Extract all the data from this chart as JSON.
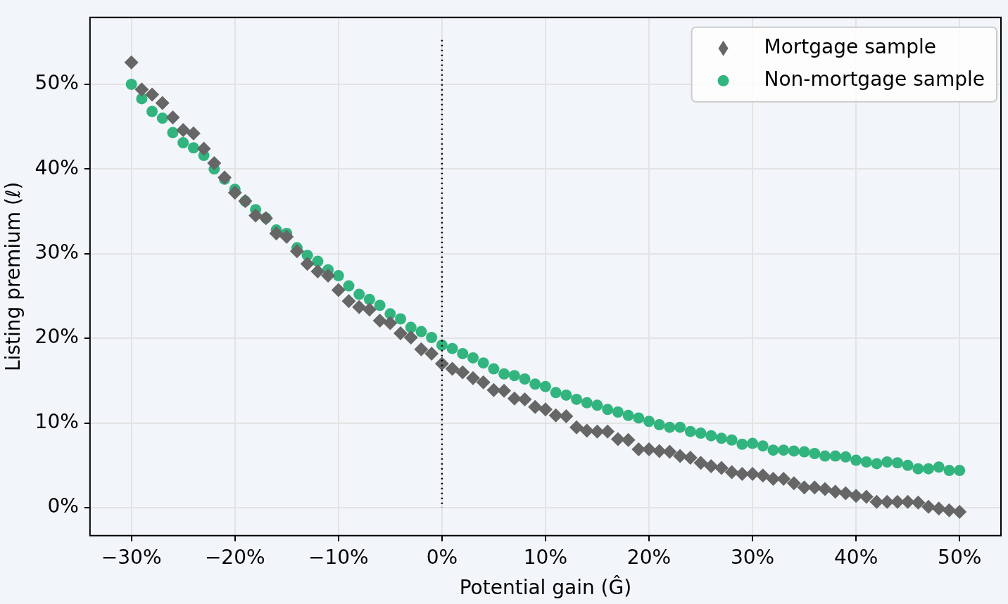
{
  "chart_data": {
    "type": "scatter",
    "xlabel": "Potential gain (Ĝ)",
    "ylabel": "Listing premium (ℓ)",
    "x": [
      -30,
      -29,
      -28,
      -27,
      -26,
      -25,
      -24,
      -23,
      -22,
      -21,
      -20,
      -19,
      -18,
      -17,
      -16,
      -15,
      -14,
      -13,
      -12,
      -11,
      -10,
      -9,
      -8,
      -7,
      -6,
      -5,
      -4,
      -3,
      -2,
      -1,
      0,
      1,
      2,
      3,
      4,
      5,
      6,
      7,
      8,
      9,
      10,
      11,
      12,
      13,
      14,
      15,
      16,
      17,
      18,
      19,
      20,
      21,
      22,
      23,
      24,
      25,
      26,
      27,
      28,
      29,
      30,
      31,
      32,
      33,
      34,
      35,
      36,
      37,
      38,
      39,
      40,
      41,
      42,
      43,
      44,
      45,
      46,
      47,
      48,
      49,
      50
    ],
    "series": [
      {
        "name": "Mortgage sample",
        "color": "#666666",
        "marker": "diamond",
        "values": [
          52.6,
          49.4,
          48.8,
          47.8,
          46.1,
          44.6,
          44.2,
          42.4,
          40.7,
          39.0,
          37.2,
          36.2,
          34.5,
          34.2,
          32.4,
          32.0,
          30.3,
          28.8,
          27.9,
          27.4,
          25.7,
          24.4,
          23.7,
          23.4,
          22.1,
          21.8,
          20.6,
          20.1,
          18.7,
          18.2,
          17.0,
          16.4,
          16.0,
          15.3,
          14.8,
          13.9,
          13.8,
          12.9,
          12.8,
          11.9,
          11.6,
          10.9,
          10.8,
          9.5,
          9.1,
          9.0,
          9.0,
          8.1,
          8.0,
          6.9,
          6.9,
          6.7,
          6.6,
          6.1,
          5.9,
          5.3,
          4.9,
          4.7,
          4.2,
          4.0,
          4.0,
          3.8,
          3.4,
          3.4,
          2.9,
          2.4,
          2.4,
          2.2,
          1.9,
          1.7,
          1.4,
          1.3,
          0.7,
          0.7,
          0.7,
          0.7,
          0.6,
          0.1,
          -0.1,
          -0.3,
          -0.5
        ]
      },
      {
        "name": "Non-mortgage sample",
        "color": "#32b47f",
        "marker": "circle",
        "values": [
          50.0,
          48.3,
          46.8,
          46.0,
          44.3,
          43.1,
          42.5,
          41.6,
          40.0,
          38.8,
          37.6,
          36.2,
          35.2,
          34.2,
          32.8,
          32.4,
          30.7,
          29.8,
          29.1,
          28.1,
          27.4,
          26.2,
          25.2,
          24.6,
          23.9,
          22.9,
          22.3,
          21.3,
          20.8,
          20.1,
          19.2,
          18.8,
          18.2,
          17.7,
          17.1,
          16.4,
          15.8,
          15.6,
          15.2,
          14.6,
          14.3,
          13.6,
          13.3,
          12.8,
          12.4,
          12.1,
          11.6,
          11.3,
          10.9,
          10.6,
          10.2,
          9.8,
          9.5,
          9.5,
          9.0,
          8.8,
          8.5,
          8.2,
          8.0,
          7.5,
          7.6,
          7.3,
          6.8,
          6.8,
          6.7,
          6.6,
          6.4,
          6.1,
          6.1,
          6.0,
          5.6,
          5.4,
          5.2,
          5.4,
          5.3,
          5.0,
          4.6,
          4.6,
          4.8,
          4.4,
          4.4
        ]
      }
    ],
    "xlim": [
      -34,
      54
    ],
    "xticks": [
      {
        "value": -30,
        "label": "−30%"
      },
      {
        "value": -20,
        "label": "−20%"
      },
      {
        "value": -10,
        "label": "−10%"
      },
      {
        "value": 0,
        "label": "0%"
      },
      {
        "value": 10,
        "label": "10%"
      },
      {
        "value": 20,
        "label": "20%"
      },
      {
        "value": 30,
        "label": "30%"
      },
      {
        "value": 40,
        "label": "40%"
      },
      {
        "value": 50,
        "label": "50%"
      }
    ],
    "ylim": [
      -3.3,
      57.9
    ],
    "yticks": [
      {
        "value": 0,
        "label": "0%"
      },
      {
        "value": 10,
        "label": "10%"
      },
      {
        "value": 20,
        "label": "20%"
      },
      {
        "value": 30,
        "label": "30%"
      },
      {
        "value": 40,
        "label": "40%"
      },
      {
        "value": 50,
        "label": "50%"
      }
    ],
    "ref_lines": [
      {
        "axis": "x",
        "value": 0,
        "color": "#000000",
        "line_style": "dotted"
      }
    ],
    "grid": true,
    "legend": "top right"
  }
}
